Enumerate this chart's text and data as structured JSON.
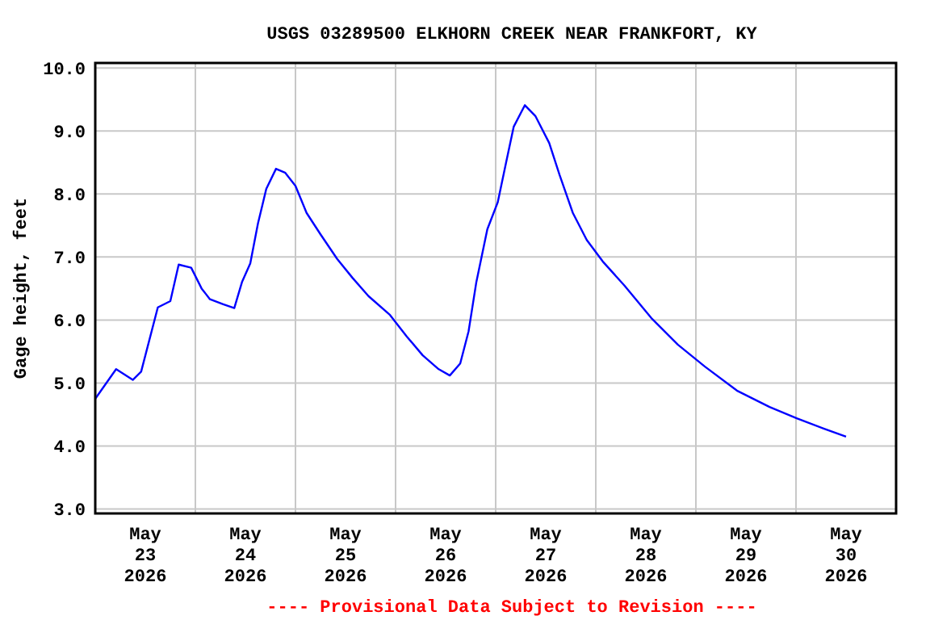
{
  "chart_data": {
    "type": "line",
    "title": "USGS 03289500 ELKHORN CREEK NEAR FRANKFORT, KY",
    "ylabel": "Gage height, feet",
    "annotations": [
      "---- Provisional Data Subject to Revision ----"
    ],
    "x": [
      "2026-05-23T00:00",
      "2026-05-23T05:00",
      "2026-05-23T09:00",
      "2026-05-23T11:00",
      "2026-05-23T15:00",
      "2026-05-23T18:00",
      "2026-05-23T20:00",
      "2026-05-23T23:00",
      "2026-05-24T01:30",
      "2026-05-24T03:30",
      "2026-05-24T06:40",
      "2026-05-24T09:20",
      "2026-05-24T11:10",
      "2026-05-24T13:10",
      "2026-05-24T15:00",
      "2026-05-24T17:00",
      "2026-05-24T19:20",
      "2026-05-24T21:30",
      "2026-05-25T00:00",
      "2026-05-25T02:40",
      "2026-05-25T06:00",
      "2026-05-25T10:00",
      "2026-05-25T13:40",
      "2026-05-25T17:30",
      "2026-05-25T22:40",
      "2026-05-26T02:40",
      "2026-05-26T06:30",
      "2026-05-26T10:20",
      "2026-05-26T13:00",
      "2026-05-26T15:30",
      "2026-05-26T17:30",
      "2026-05-26T19:20",
      "2026-05-26T22:00",
      "2026-05-27T00:30",
      "2026-05-27T02:30",
      "2026-05-27T04:20",
      "2026-05-27T07:00",
      "2026-05-27T09:30",
      "2026-05-27T12:50",
      "2026-05-27T15:20",
      "2026-05-27T18:30",
      "2026-05-27T21:50",
      "2026-05-28T01:40",
      "2026-05-28T06:50",
      "2026-05-28T13:20",
      "2026-05-28T19:40",
      "2026-05-29T02:10",
      "2026-05-29T09:50",
      "2026-05-29T17:40",
      "2026-05-30T00:10",
      "2026-05-30T06:30",
      "2026-05-30T12:00"
    ],
    "series": [
      {
        "color": "#0000ff",
        "values": [
          4.75,
          5.22,
          5.05,
          5.18,
          6.2,
          6.3,
          6.88,
          6.83,
          6.5,
          6.33,
          6.25,
          6.19,
          6.6,
          6.9,
          7.53,
          8.08,
          8.4,
          8.34,
          8.13,
          7.7,
          7.36,
          6.97,
          6.67,
          6.38,
          6.08,
          5.74,
          5.44,
          5.22,
          5.12,
          5.31,
          5.82,
          6.59,
          7.44,
          7.87,
          8.5,
          9.07,
          9.41,
          9.24,
          8.81,
          8.3,
          7.7,
          7.27,
          6.93,
          6.55,
          6.03,
          5.61,
          5.26,
          4.88,
          4.62,
          4.44,
          4.28,
          4.15
        ]
      }
    ],
    "xlim": [
      "2026-05-23T00:00",
      "2026-05-31T00:00"
    ],
    "xticks": [
      {
        "value": "2026-05-23T12:00",
        "label": "May\n23\n2026"
      },
      {
        "value": "2026-05-24T00:00",
        "label": null
      },
      {
        "value": "2026-05-24T12:00",
        "label": "May\n24\n2026"
      },
      {
        "value": "2026-05-25T00:00",
        "label": null
      },
      {
        "value": "2026-05-25T12:00",
        "label": "May\n25\n2026"
      },
      {
        "value": "2026-05-26T00:00",
        "label": null
      },
      {
        "value": "2026-05-26T12:00",
        "label": "May\n26\n2026"
      },
      {
        "value": "2026-05-27T00:00",
        "label": null
      },
      {
        "value": "2026-05-27T12:00",
        "label": "May\n27\n2026"
      },
      {
        "value": "2026-05-28T00:00",
        "label": null
      },
      {
        "value": "2026-05-28T12:00",
        "label": "May\n28\n2026"
      },
      {
        "value": "2026-05-29T00:00",
        "label": null
      },
      {
        "value": "2026-05-29T12:00",
        "label": "May\n29\n2026"
      },
      {
        "value": "2026-05-30T00:00",
        "label": null
      },
      {
        "value": "2026-05-30T12:00",
        "label": "May\n30\n2026"
      }
    ],
    "ylim": [
      2.93,
      10.08
    ],
    "yticks": [
      {
        "value": 3,
        "label": "3.0"
      },
      {
        "value": 4,
        "label": "4.0"
      },
      {
        "value": 5,
        "label": "5.0"
      },
      {
        "value": 6,
        "label": "6.0"
      },
      {
        "value": 7,
        "label": "7.0"
      },
      {
        "value": 8,
        "label": "8.0"
      },
      {
        "value": 9,
        "label": "9.0"
      },
      {
        "value": 10,
        "label": "10.0"
      }
    ],
    "grid": true,
    "line_style": "solid"
  }
}
